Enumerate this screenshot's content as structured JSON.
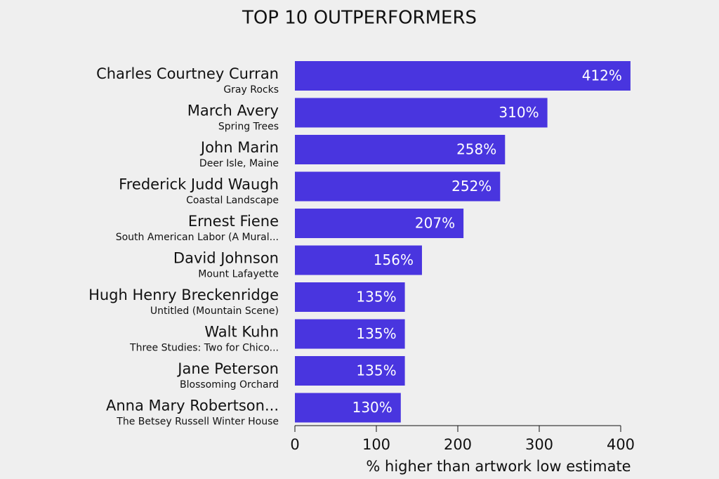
{
  "chart_data": {
    "type": "barh",
    "title": "TOP 10 OUTPERFORMERS",
    "categories": [
      "Charles Courtney Curran",
      "March Avery",
      "John Marin",
      "Frederick Judd Waugh",
      "Ernest Fiene",
      "David Johnson",
      "Hugh Henry Breckenridge",
      "Walt Kuhn",
      "Jane Peterson",
      "Anna Mary Robertson..."
    ],
    "subtitles": [
      "Gray Rocks",
      "Spring Trees",
      "Deer Isle, Maine",
      "Coastal Landscape",
      "South American Labor (A Mural...",
      "Mount Lafayette",
      "Untitled (Mountain Scene)",
      "Three Studies: Two for Chico...",
      "Blossoming Orchard",
      "The Betsey Russell Winter House"
    ],
    "values": [
      412,
      310,
      258,
      252,
      207,
      156,
      135,
      135,
      135,
      130
    ],
    "value_labels": [
      "412%",
      "310%",
      "258%",
      "252%",
      "207%",
      "156%",
      "135%",
      "135%",
      "135%",
      "130%"
    ],
    "color": "#4935df",
    "xlim": [
      0,
      400
    ],
    "xticks": [
      0,
      100,
      200,
      300,
      400
    ],
    "xlabel": "% higher than artwork low estimate"
  }
}
